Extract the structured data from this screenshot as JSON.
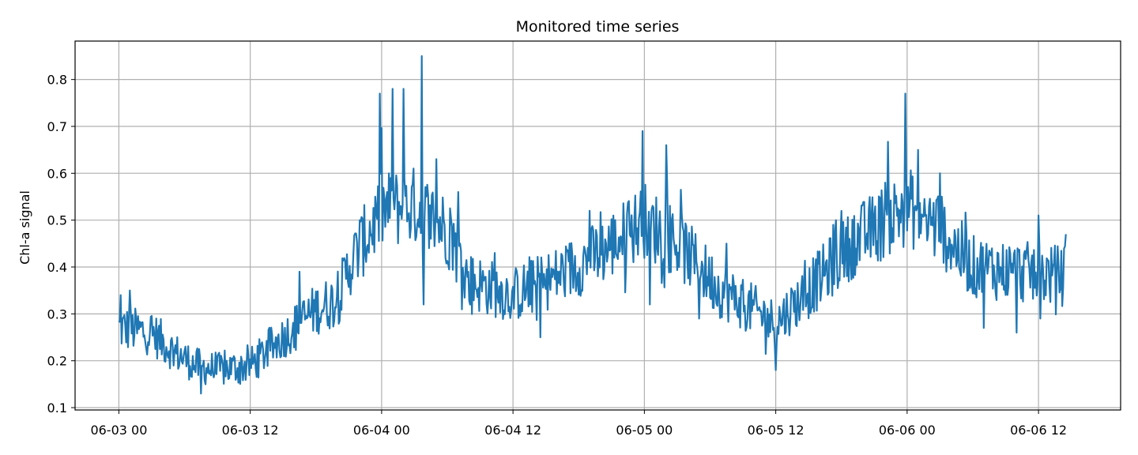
{
  "chart_data": {
    "type": "line",
    "title": "Monitored time series",
    "xlabel": "",
    "ylabel": "Chl-a signal",
    "x_range": [
      "06-02 20:00",
      "06-06 19:30"
    ],
    "ylim": [
      0.095,
      0.882
    ],
    "grid": true,
    "x_ticks": [
      {
        "label": "06-03 00",
        "hour": 0
      },
      {
        "label": "06-03 12",
        "hour": 12
      },
      {
        "label": "06-04 00",
        "hour": 24
      },
      {
        "label": "06-04 12",
        "hour": 36
      },
      {
        "label": "06-05 00",
        "hour": 48
      },
      {
        "label": "06-05 12",
        "hour": 60
      },
      {
        "label": "06-06 00",
        "hour": 72
      },
      {
        "label": "06-06 12",
        "hour": 84
      }
    ],
    "y_ticks": [
      0.1,
      0.2,
      0.3,
      0.4,
      0.5,
      0.6,
      0.7,
      0.8
    ],
    "series": [
      {
        "color": "#1f77b4",
        "x_start": "06-03 00:00",
        "x_end": "06-06 14:30",
        "trend": [
          [
            "06-03 00:00",
            0.27
          ],
          [
            "06-03 03:00",
            0.26
          ],
          [
            "06-03 05:00",
            0.22
          ],
          [
            "06-03 07:00",
            0.19
          ],
          [
            "06-03 09:00",
            0.18
          ],
          [
            "06-03 12:00",
            0.19
          ],
          [
            "06-03 15:00",
            0.25
          ],
          [
            "06-03 18:00",
            0.31
          ],
          [
            "06-03 20:00",
            0.33
          ],
          [
            "06-03 21:00",
            0.4
          ],
          [
            "06-04 00:00",
            0.52
          ],
          [
            "06-04 03:00",
            0.53
          ],
          [
            "06-04 06:00",
            0.48
          ],
          [
            "06-04 08:00",
            0.37
          ],
          [
            "06-04 12:00",
            0.34
          ],
          [
            "06-04 16:00",
            0.38
          ],
          [
            "06-04 20:00",
            0.43
          ],
          [
            "06-05 00:00",
            0.5
          ],
          [
            "06-05 03:00",
            0.45
          ],
          [
            "06-05 07:00",
            0.35
          ],
          [
            "06-05 12:00",
            0.28
          ],
          [
            "06-05 15:00",
            0.35
          ],
          [
            "06-05 19:00",
            0.45
          ],
          [
            "06-05 24:00",
            0.53
          ],
          [
            "06-06 03:00",
            0.48
          ],
          [
            "06-06 06:00",
            0.4
          ],
          [
            "06-06 14:30",
            0.38
          ]
        ],
        "peaks": [
          [
            "06-03 00:10",
            0.34
          ],
          [
            "06-03 01:00",
            0.35
          ],
          [
            "06-03 07:30",
            0.13
          ],
          [
            "06-03 16:30",
            0.39
          ],
          [
            "06-03 22:00",
            0.5
          ],
          [
            "06-03 23:50",
            0.77
          ],
          [
            "06-04 01:00",
            0.78
          ],
          [
            "06-04 02:00",
            0.78
          ],
          [
            "06-04 03:40",
            0.85
          ],
          [
            "06-04 03:50",
            0.32
          ],
          [
            "06-04 05:00",
            0.63
          ],
          [
            "06-04 07:00",
            0.56
          ],
          [
            "06-04 10:20",
            0.43
          ],
          [
            "06-04 14:30",
            0.25
          ],
          [
            "06-04 19:00",
            0.52
          ],
          [
            "06-04 23:50",
            0.69
          ],
          [
            "06-05 00:30",
            0.32
          ],
          [
            "06-05 02:00",
            0.66
          ],
          [
            "06-05 05:00",
            0.29
          ],
          [
            "06-05 07:30",
            0.45
          ],
          [
            "06-05 12:00",
            0.18
          ],
          [
            "06-05 17:30",
            0.5
          ],
          [
            "06-05 22:00",
            0.58
          ],
          [
            "06-05 23:50",
            0.77
          ],
          [
            "06-06 01:00",
            0.65
          ],
          [
            "06-06 03:00",
            0.6
          ],
          [
            "06-06 07:00",
            0.27
          ],
          [
            "06-06 10:00",
            0.26
          ],
          [
            "06-06 12:00",
            0.51
          ],
          [
            "06-06 12:10",
            0.29
          ],
          [
            "06-06 14:30",
            0.47
          ]
        ]
      }
    ]
  }
}
